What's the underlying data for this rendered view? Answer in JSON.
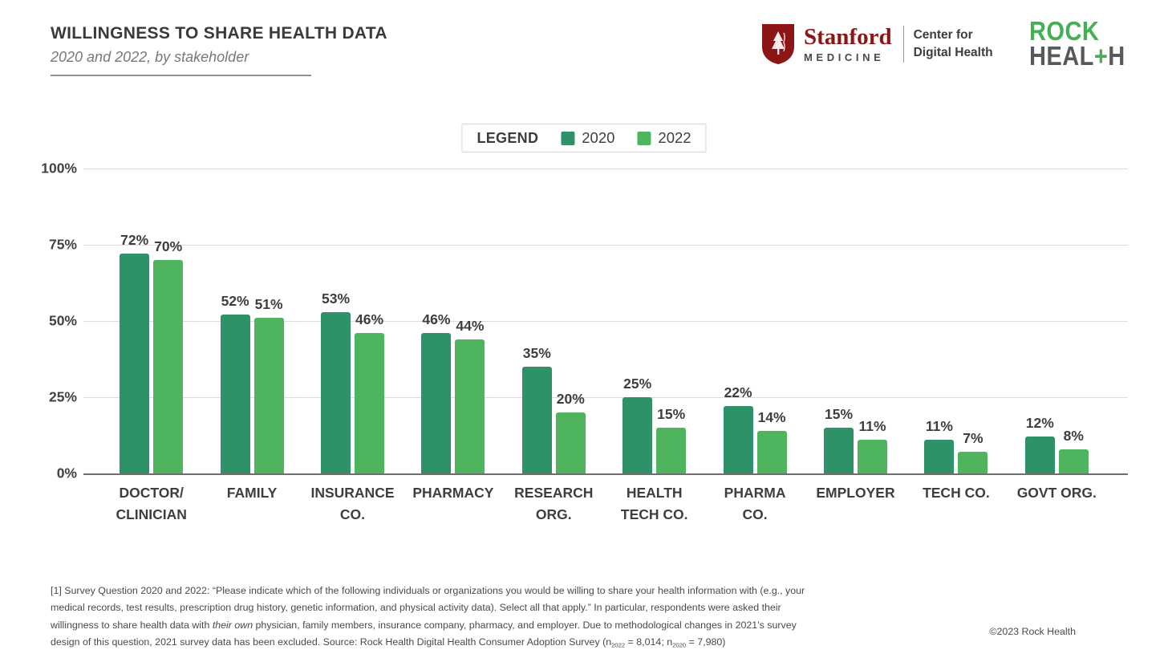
{
  "header": {
    "title": "WILLINGNESS TO SHARE HEALTH DATA",
    "subtitle": "2020 and 2022, by stakeholder"
  },
  "logos": {
    "stanford": {
      "wordmark": "Stanford",
      "division": "MEDICINE",
      "unit_line1": "Center for",
      "unit_line2": "Digital Health",
      "shield_color": "#8C1515"
    },
    "rock": {
      "line1": "ROCK",
      "line2_prefix": "HEAL",
      "line2_plus": "+",
      "line2_suffix": "H",
      "green": "#45AF53",
      "gray": "#58595B"
    }
  },
  "legend": {
    "label": "LEGEND"
  },
  "chart_data": {
    "type": "bar",
    "title": "WILLINGNESS TO SHARE HEALTH DATA",
    "subtitle": "2020 and 2022, by stakeholder",
    "categories": [
      [
        "DOCTOR/",
        "CLINICIAN"
      ],
      [
        "FAMILY"
      ],
      [
        "INSURANCE",
        "CO."
      ],
      [
        "PHARMACY"
      ],
      [
        "RESEARCH",
        "ORG."
      ],
      [
        "HEALTH",
        "TECH CO."
      ],
      [
        "PHARMA",
        "CO."
      ],
      [
        "EMPLOYER"
      ],
      [
        "TECH CO."
      ],
      [
        "GOVT ORG."
      ]
    ],
    "series": [
      {
        "name": "2020",
        "color": "#2E9168",
        "values": [
          72,
          52,
          53,
          46,
          35,
          25,
          22,
          15,
          11,
          12
        ]
      },
      {
        "name": "2022",
        "color": "#4FB45E",
        "values": [
          70,
          51,
          46,
          44,
          20,
          15,
          14,
          11,
          7,
          8
        ]
      }
    ],
    "value_suffix": "%",
    "yticks": [
      {
        "value": 100,
        "label": "100%"
      },
      {
        "value": 75,
        "label": "75%"
      },
      {
        "value": 50,
        "label": "50%"
      },
      {
        "value": 25,
        "label": "25%"
      },
      {
        "value": 0,
        "label": "0%"
      }
    ],
    "ylim": [
      0,
      100
    ],
    "grid": true,
    "legend_position": "top-center"
  },
  "footnote": {
    "segments": [
      {
        "style": "normal",
        "text": "[1] Survey Question 2020 and 2022: “Please indicate which of the following individuals or organizations you would be willing to share your health information with (e.g., your medical records, test results, prescription drug history, genetic information, and physical activity data). Select all that apply.” In particular, respondents were asked their willingness to share health data with "
      },
      {
        "style": "italic",
        "text": "their own"
      },
      {
        "style": "normal",
        "text": " physician, family members, insurance company, pharmacy, and employer. Due to methodological changes in 2021’s survey design of this question, 2021 survey data has been excluded. Source: Rock Health Digital Health Consumer Adoption Survey (n"
      },
      {
        "style": "sub",
        "text": "2022"
      },
      {
        "style": "normal",
        "text": " = 8,014; n"
      },
      {
        "style": "sub",
        "text": "2020"
      },
      {
        "style": "normal",
        "text": " = 7,980)"
      }
    ]
  },
  "footer": {
    "copyright": "©2023 Rock Health"
  }
}
